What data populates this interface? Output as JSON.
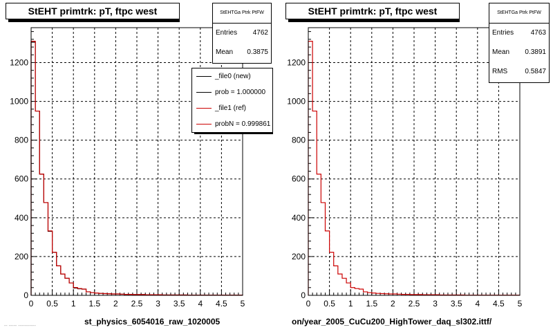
{
  "colors": {
    "new": "#000000",
    "ref": "#cc0000",
    "frame": "#000000",
    "grid": "#000000"
  },
  "chart_data": [
    {
      "type": "histogram",
      "title": "StEHT primtrk: pT, ftpc west",
      "xlabel": "st_physics_6054016_raw_1020005",
      "ylabel": "",
      "xlim": [
        0,
        5
      ],
      "ylim": [
        0,
        1380
      ],
      "bin_width": 0.1,
      "xticks": [
        "0",
        "0.5",
        "1",
        "1.5",
        "2",
        "2.5",
        "3",
        "3.5",
        "4",
        "4.5",
        "5"
      ],
      "yticks": [
        "0",
        "200",
        "400",
        "600",
        "800",
        "1000",
        "1200"
      ],
      "ytick_values": [
        0,
        200,
        400,
        600,
        800,
        1000,
        1200
      ],
      "grid": true,
      "stats": {
        "name": "StEHTGa Ptrk PtFW",
        "rows": [
          {
            "label": "Entries",
            "value": "4762"
          },
          {
            "label": "Mean",
            "value": "0.3875"
          }
        ]
      },
      "legend": {
        "placement": "top-right",
        "entries": [
          {
            "label": "_file0 (new)",
            "color": "#000000"
          },
          {
            "label": "prob = 1.000000",
            "color": "#000000"
          },
          {
            "label": "_file1 (ref)",
            "color": "#cc0000"
          },
          {
            "label": "probN = 0.999861",
            "color": "#cc0000"
          }
        ]
      },
      "series": [
        {
          "name": "_file0 (new)",
          "color": "#000000",
          "values": [
            1305,
            950,
            625,
            478,
            330,
            222,
            152,
            110,
            88,
            64,
            38,
            34,
            32,
            18,
            14,
            12,
            10,
            9,
            8,
            7,
            7,
            6,
            5,
            5,
            4,
            4,
            4,
            3,
            3,
            3,
            3,
            2,
            2,
            2,
            2,
            2,
            2,
            1,
            1,
            1,
            1,
            1,
            1,
            1,
            1,
            1,
            1,
            1,
            1,
            1
          ]
        },
        {
          "name": "_file1 (ref)",
          "color": "#cc0000",
          "values": [
            1310,
            950,
            625,
            478,
            332,
            222,
            152,
            110,
            88,
            64,
            40,
            35,
            32,
            18,
            14,
            12,
            10,
            9,
            8,
            7,
            7,
            6,
            5,
            5,
            4,
            4,
            4,
            3,
            3,
            3,
            3,
            2,
            2,
            2,
            2,
            2,
            2,
            1,
            1,
            1,
            1,
            1,
            1,
            1,
            1,
            1,
            1,
            1,
            1,
            1
          ]
        }
      ]
    },
    {
      "type": "histogram",
      "title": "StEHT primtrk: pT, ftpc west",
      "xlabel": "on/year_2005_CuCu200_HighTower_daq_sl302.ittf/",
      "ylabel": "",
      "xlim": [
        0,
        5
      ],
      "ylim": [
        0,
        1380
      ],
      "bin_width": 0.1,
      "xticks": [
        "0",
        "0.5",
        "1",
        "1.5",
        "2",
        "2.5",
        "3",
        "3.5",
        "4",
        "4.5",
        "5"
      ],
      "yticks": [
        "0",
        "200",
        "400",
        "600",
        "800",
        "1000",
        "1200"
      ],
      "ytick_values": [
        0,
        200,
        400,
        600,
        800,
        1000,
        1200
      ],
      "grid": true,
      "stats": {
        "name": "StEHTGa Ptrk PtFW",
        "rows": [
          {
            "label": "Entries",
            "value": "4763"
          },
          {
            "label": "Mean",
            "value": "0.3891"
          },
          {
            "label": "RMS",
            "value": "0.5847"
          }
        ]
      },
      "series": [
        {
          "color": "#cc0000",
          "values": [
            1310,
            950,
            625,
            478,
            332,
            222,
            152,
            110,
            88,
            64,
            40,
            35,
            32,
            18,
            14,
            12,
            10,
            9,
            8,
            7,
            7,
            6,
            5,
            5,
            4,
            4,
            4,
            3,
            3,
            3,
            3,
            2,
            2,
            2,
            2,
            2,
            2,
            1,
            1,
            1,
            1,
            1,
            1,
            1,
            1,
            1,
            1,
            1,
            1,
            1
          ]
        }
      ]
    }
  ],
  "footer_note": "-- ----- -----------"
}
